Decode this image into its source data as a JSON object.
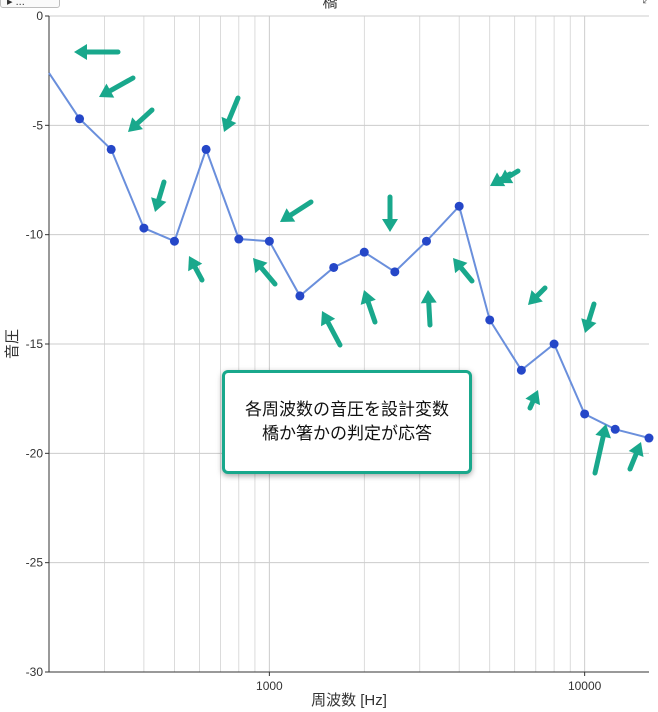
{
  "header": {
    "left_button": "▸ ...",
    "title": "橋",
    "corner": "⤢"
  },
  "annotation": {
    "line1": "各周波数の音圧を設計変数",
    "line2": "橋か箸かの判定が応答"
  },
  "colors": {
    "line": "#6a8fdc",
    "marker": "#2547c8",
    "arrow": "#19a88c",
    "grid": "#cccccc",
    "box_border": "#19a88c"
  },
  "chart_data": {
    "type": "line",
    "xscale": "log",
    "xlim": [
      200,
      16000
    ],
    "ylim": [
      -30,
      0
    ],
    "xlabel": "周波数 [Hz]",
    "ylabel": "音圧",
    "grid": true,
    "xticks": [
      1000,
      10000
    ],
    "xtick_labels": [
      "1000",
      "10000"
    ],
    "yticks": [
      0,
      -5,
      -10,
      -15,
      -20,
      -25,
      -30
    ],
    "ytick_labels": [
      "0",
      "-5",
      "-10",
      "-15",
      "-20",
      "-25",
      "-30"
    ],
    "x": [
      200,
      250,
      315,
      400,
      500,
      630,
      800,
      1000,
      1250,
      1600,
      2000,
      2500,
      3150,
      4000,
      5000,
      6300,
      8000,
      10000,
      12500,
      16000
    ],
    "series": [
      {
        "values": [
          -2.6,
          -4.7,
          -6.1,
          -9.7,
          -10.3,
          -6.1,
          -10.2,
          -10.3,
          -12.8,
          -11.5,
          -10.8,
          -11.7,
          -10.3,
          -8.7,
          -13.9,
          -16.2,
          -15.0,
          -18.2,
          -18.9,
          -19.3
        ]
      }
    ]
  }
}
